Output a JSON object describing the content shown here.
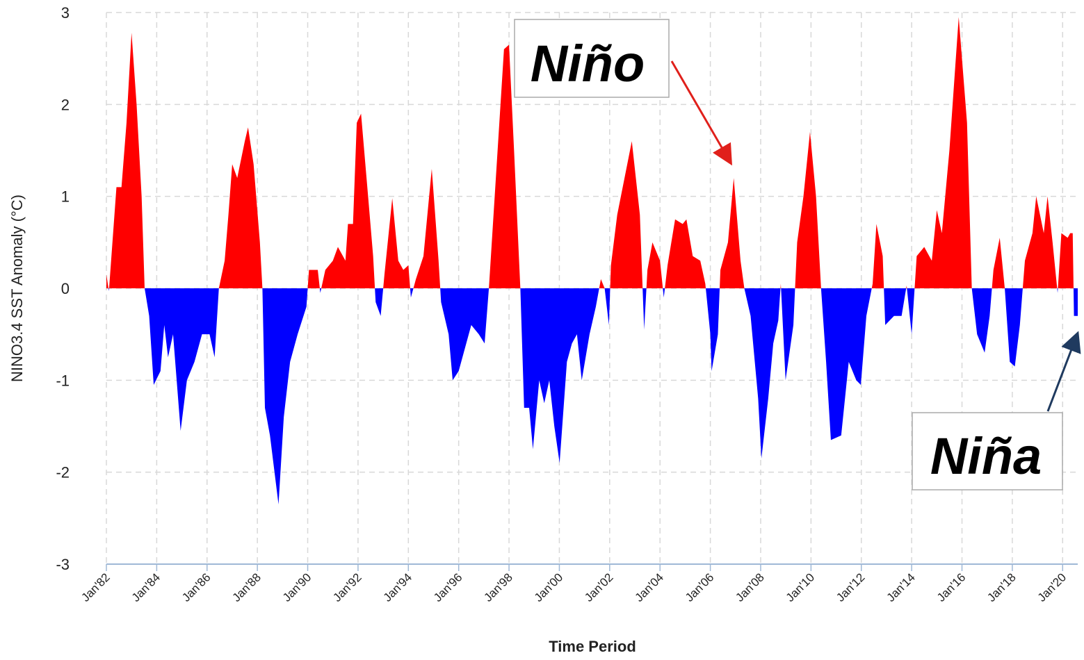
{
  "chart_data": {
    "type": "area",
    "y_label": "NINO3.4 SST Anomaly (°C)",
    "x_label": "Time Period",
    "color_positive": "#ff0000",
    "color_negative": "#0000ff",
    "grid": true,
    "ylim": [
      -3,
      3
    ],
    "yticks": [
      -3,
      -2,
      -1,
      0,
      1,
      2,
      3
    ],
    "xlim": [
      1982,
      2020.6
    ],
    "xticks": [
      {
        "value": 1982,
        "label": "Jan'82"
      },
      {
        "value": 1984,
        "label": "Jan'84"
      },
      {
        "value": 1986,
        "label": "Jan'86"
      },
      {
        "value": 1988,
        "label": "Jan'88"
      },
      {
        "value": 1990,
        "label": "Jan'90"
      },
      {
        "value": 1992,
        "label": "Jan'92"
      },
      {
        "value": 1994,
        "label": "Jan'94"
      },
      {
        "value": 1996,
        "label": "Jan'96"
      },
      {
        "value": 1998,
        "label": "Jan'98"
      },
      {
        "value": 2000,
        "label": "Jan'00"
      },
      {
        "value": 2002,
        "label": "Jan'02"
      },
      {
        "value": 2004,
        "label": "Jan'04"
      },
      {
        "value": 2006,
        "label": "Jan'06"
      },
      {
        "value": 2008,
        "label": "Jan'08"
      },
      {
        "value": 2010,
        "label": "Jan'10"
      },
      {
        "value": 2012,
        "label": "Jan'12"
      },
      {
        "value": 2014,
        "label": "Jan'14"
      },
      {
        "value": 2016,
        "label": "Jan'16"
      },
      {
        "value": 2018,
        "label": "Jan'18"
      },
      {
        "value": 2020,
        "label": "Jan'20"
      }
    ],
    "annotations": [
      "Niño",
      "Niña"
    ],
    "x": [
      1982.0,
      1982.1,
      1982.4,
      1982.6,
      1982.8,
      1983.0,
      1983.2,
      1983.4,
      1983.52,
      1983.7,
      1983.88,
      1984.15,
      1984.3,
      1984.45,
      1984.65,
      1984.95,
      1985.2,
      1985.5,
      1985.8,
      1986.1,
      1986.3,
      1986.47,
      1986.7,
      1986.85,
      1987.0,
      1987.2,
      1987.5,
      1987.63,
      1987.85,
      1988.1,
      1988.2,
      1988.3,
      1988.5,
      1988.84,
      1989.05,
      1989.3,
      1989.6,
      1989.95,
      1990.05,
      1990.4,
      1990.5,
      1990.7,
      1991.0,
      1991.2,
      1991.5,
      1991.6,
      1991.8,
      1991.95,
      1992.12,
      1992.4,
      1992.6,
      1992.7,
      1992.9,
      1993.05,
      1993.36,
      1993.6,
      1993.8,
      1994.0,
      1994.1,
      1994.3,
      1994.6,
      1994.93,
      1995.2,
      1995.3,
      1995.6,
      1995.76,
      1996.0,
      1996.3,
      1996.5,
      1996.8,
      1997.03,
      1997.2,
      1997.5,
      1997.8,
      1998.0,
      1998.2,
      1998.45,
      1998.6,
      1998.8,
      1998.95,
      1999.2,
      1999.4,
      1999.6,
      1999.8,
      2000.01,
      2000.3,
      2000.5,
      2000.7,
      2000.89,
      2001.2,
      2001.45,
      2001.65,
      2001.8,
      2001.97,
      2002.05,
      2002.3,
      2002.88,
      2003.2,
      2003.37,
      2003.5,
      2003.7,
      2004.0,
      2004.15,
      2004.3,
      2004.6,
      2004.9,
      2005.05,
      2005.3,
      2005.6,
      2005.8,
      2006.0,
      2006.05,
      2006.3,
      2006.4,
      2006.7,
      2006.93,
      2007.2,
      2007.35,
      2007.6,
      2007.9,
      2008.03,
      2008.3,
      2008.5,
      2008.7,
      2008.8,
      2008.99,
      2009.3,
      2009.45,
      2009.7,
      2009.96,
      2010.2,
      2010.4,
      2010.6,
      2010.79,
      2011.2,
      2011.5,
      2011.8,
      2011.98,
      2012.2,
      2012.45,
      2012.6,
      2012.85,
      2012.95,
      2013.3,
      2013.6,
      2013.8,
      2014.0,
      2014.2,
      2014.5,
      2014.8,
      2015.0,
      2015.2,
      2015.5,
      2015.87,
      2016.2,
      2016.39,
      2016.6,
      2016.9,
      2017.1,
      2017.25,
      2017.5,
      2017.7,
      2017.9,
      2018.1,
      2018.3,
      2018.5,
      2018.8,
      2018.95,
      2019.25,
      2019.4,
      2019.6,
      2019.8,
      2019.95,
      2020.2,
      2020.3,
      2020.4,
      2020.45,
      2020.6
    ],
    "values": [
      0.15,
      -0.03,
      1.1,
      1.1,
      1.8,
      2.78,
      2.0,
      1.0,
      0,
      -0.3,
      -1.05,
      -0.9,
      -0.4,
      -0.75,
      -0.5,
      -1.55,
      -1.0,
      -0.8,
      -0.5,
      -0.5,
      -0.75,
      0,
      0.3,
      0.8,
      1.35,
      1.2,
      1.6,
      1.75,
      1.35,
      0.5,
      0,
      -1.3,
      -1.6,
      -2.35,
      -1.4,
      -0.8,
      -0.5,
      -0.2,
      0.2,
      0.2,
      -0.05,
      0.2,
      0.3,
      0.45,
      0.3,
      0.7,
      0.7,
      1.8,
      1.9,
      1.0,
      0.35,
      -0.15,
      -0.3,
      0.15,
      0.98,
      0.3,
      0.2,
      0.25,
      -0.1,
      0.1,
      0.35,
      1.3,
      0.3,
      -0.15,
      -0.5,
      -1.0,
      -0.9,
      -0.6,
      -0.4,
      -0.5,
      -0.6,
      0,
      1.3,
      2.6,
      2.65,
      1.5,
      0,
      -1.3,
      -1.3,
      -1.75,
      -1.0,
      -1.25,
      -1.0,
      -1.5,
      -1.9,
      -0.8,
      -0.6,
      -0.5,
      -1.0,
      -0.5,
      -0.2,
      0.1,
      0.0,
      -0.4,
      0.25,
      0.8,
      1.6,
      0.8,
      -0.45,
      0.2,
      0.5,
      0.3,
      -0.1,
      0.25,
      0.75,
      0.7,
      0.75,
      0.35,
      0.3,
      0.05,
      -0.5,
      -0.9,
      -0.5,
      0.2,
      0.5,
      1.2,
      0.3,
      0,
      -0.3,
      -1.2,
      -1.85,
      -1.2,
      -0.6,
      -0.35,
      0.05,
      -1.0,
      -0.4,
      0.5,
      1.0,
      1.7,
      1.0,
      0,
      -0.8,
      -1.65,
      -1.6,
      -0.8,
      -1.0,
      -1.05,
      -0.3,
      0.05,
      0.7,
      0.35,
      -0.4,
      -0.3,
      -0.3,
      0.03,
      -0.5,
      0.35,
      0.45,
      0.3,
      0.85,
      0.6,
      1.5,
      2.95,
      1.8,
      0,
      -0.5,
      -0.7,
      -0.3,
      0.2,
      0.55,
      0,
      -0.8,
      -0.85,
      -0.4,
      0.3,
      0.6,
      1.0,
      0.6,
      1.0,
      0.5,
      -0.05,
      0.6,
      0.55,
      0.6,
      0.6,
      -0.3,
      -0.3
    ]
  }
}
